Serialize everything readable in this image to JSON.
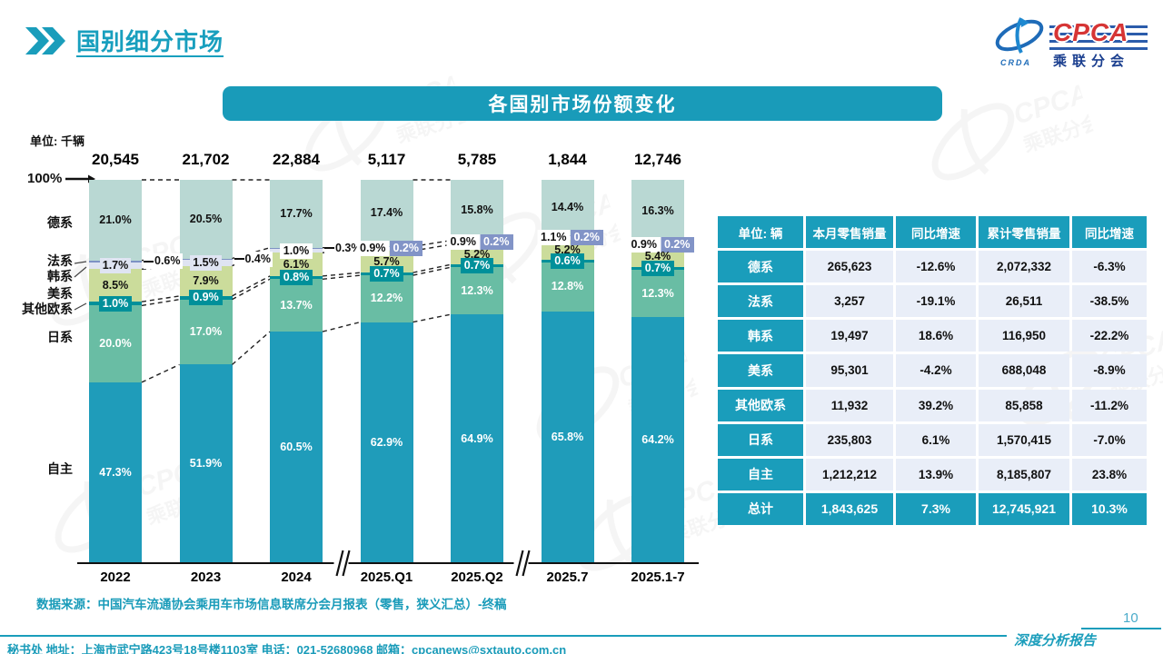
{
  "page": {
    "title": "国别细分市场",
    "page_number": "10",
    "report_label": "深度分析报告"
  },
  "logo": {
    "cpca": "CPCA",
    "crda": "CRDA",
    "subtitle": "乘联分会"
  },
  "chart": {
    "header": "各国别市场份额变化",
    "unit_label": "单位: 千辆",
    "hundred_label": "100%",
    "source": "数据来源：中国汽车流通协会乘用车市场信息联席分会月报表（零售，狭义汇总）-终稿"
  },
  "chart_data": {
    "type": "bar",
    "subtype": "stacked-100-percent",
    "title": "各国别市场份额变化",
    "unit": "千辆",
    "legend_position": "left-of-bars",
    "grid": false,
    "ylim": [
      0,
      100
    ],
    "categories": [
      "2022",
      "2023",
      "2024",
      "2025.Q1",
      "2025.Q2",
      "2025.7",
      "2025.1-7"
    ],
    "totals": [
      "20,545",
      "21,702",
      "22,884",
      "5,117",
      "5,785",
      "1,844",
      "12,746"
    ],
    "axis_breaks_after": [
      "2024",
      "2025.Q2"
    ],
    "series": [
      {
        "name": "德系",
        "color": "#b9d8d3",
        "values": [
          21.0,
          20.5,
          17.7,
          17.4,
          15.8,
          14.4,
          16.3
        ]
      },
      {
        "name": "法系",
        "color": "#7d92c4",
        "values": [
          0.6,
          0.4,
          0.3,
          0.2,
          0.2,
          0.2,
          0.2
        ]
      },
      {
        "name": "韩系",
        "color": "#dfe4f2",
        "values": [
          1.7,
          1.5,
          1.0,
          0.9,
          0.9,
          1.1,
          0.9
        ]
      },
      {
        "name": "美系",
        "color": "#cbdc9b",
        "values": [
          8.5,
          7.9,
          6.1,
          5.7,
          5.2,
          5.2,
          5.4
        ]
      },
      {
        "name": "其他欧系",
        "color": "#00909a",
        "values": [
          1.0,
          0.9,
          0.8,
          0.7,
          0.7,
          0.6,
          0.7
        ]
      },
      {
        "name": "日系",
        "color": "#69bda4",
        "values": [
          20.0,
          17.0,
          13.7,
          12.2,
          12.3,
          12.8,
          12.3
        ]
      },
      {
        "name": "自主",
        "color": "#1f9cba",
        "values": [
          47.3,
          51.9,
          60.5,
          62.9,
          64.9,
          65.8,
          64.2
        ]
      }
    ]
  },
  "table": {
    "headers": [
      "单位: 辆",
      "本月零售销量",
      "同比增速",
      "累计零售销量",
      "同比增速"
    ],
    "rows": [
      [
        "德系",
        "265,623",
        "-12.6%",
        "2,072,332",
        "-6.3%"
      ],
      [
        "法系",
        "3,257",
        "-19.1%",
        "26,511",
        "-38.5%"
      ],
      [
        "韩系",
        "19,497",
        "18.6%",
        "116,950",
        "-22.2%"
      ],
      [
        "美系",
        "95,301",
        "-4.2%",
        "688,048",
        "-8.9%"
      ],
      [
        "其他欧系",
        "11,932",
        "39.2%",
        "85,858",
        "-11.2%"
      ],
      [
        "日系",
        "235,803",
        "6.1%",
        "1,570,415",
        "-7.0%"
      ],
      [
        "自主",
        "1,212,212",
        "13.9%",
        "8,185,807",
        "23.8%"
      ]
    ],
    "total_row": [
      "总计",
      "1,843,625",
      "7.3%",
      "12,745,921",
      "10.3%"
    ]
  },
  "footer": {
    "secretariat": "秘书处  地址：上海市武宁路423号18号楼1103室 电话：021-52680968  邮箱：cpcanews@sxtauto.com.cn"
  },
  "colors": {
    "brand_teal": "#1a9dbb",
    "table_cell_bg": "#e9eef8",
    "logo_red": "#d63535",
    "logo_blue": "#1b3f8f"
  }
}
